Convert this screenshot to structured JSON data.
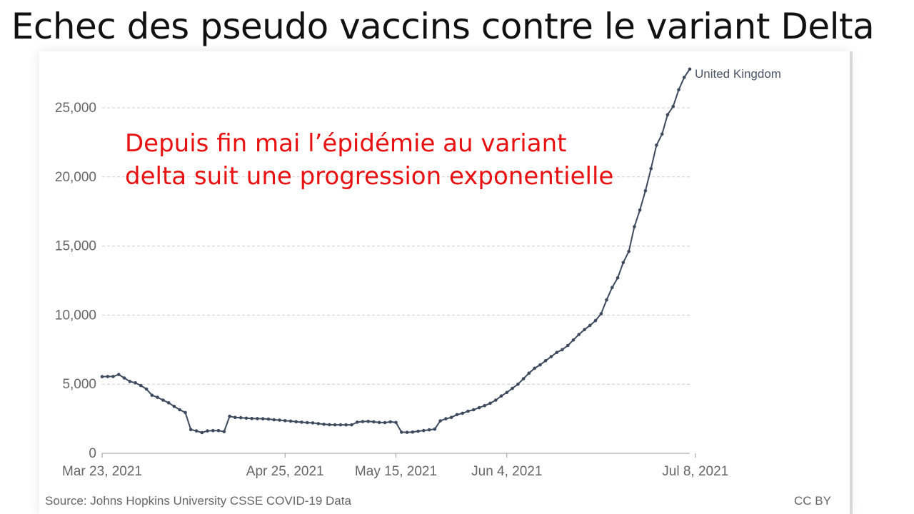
{
  "slide_title": "Echec des pseudo vaccins contre le variant Delta",
  "annotation": {
    "line1": "Depuis fin mai l’épidémie au variant",
    "line2": "delta suit une progression exponentielle"
  },
  "source": "Source: Johns Hopkins University CSSE COVID-19 Data",
  "license": "CC BY",
  "colors": {
    "series": "#3d4a5e",
    "annotation": "#e81010",
    "grid": "#cccccc",
    "axis_text": "#666666"
  },
  "chart_data": {
    "type": "line",
    "grid": true,
    "ylim": [
      0,
      28000
    ],
    "y_ticks": [
      {
        "value": 0,
        "label": "0"
      },
      {
        "value": 5000,
        "label": "5,000"
      },
      {
        "value": 10000,
        "label": "10,000"
      },
      {
        "value": 15000,
        "label": "15,000"
      },
      {
        "value": 20000,
        "label": "20,000"
      },
      {
        "value": 25000,
        "label": "25,000"
      }
    ],
    "x_ticks": [
      {
        "label": "Mar 23, 2021",
        "day": 0
      },
      {
        "label": "Apr 25, 2021",
        "day": 33
      },
      {
        "label": "May 15, 2021",
        "day": 53
      },
      {
        "label": "Jun 4, 2021",
        "day": 73
      },
      {
        "label": "Jul 8, 2021",
        "day": 107
      }
    ],
    "x_start": "2021-03-23",
    "x_end": "2021-07-08",
    "series": [
      {
        "name": "United Kingdom",
        "values": [
          5550,
          5560,
          5560,
          5700,
          5450,
          5200,
          5100,
          4900,
          4650,
          4200,
          4050,
          3850,
          3650,
          3400,
          3150,
          2950,
          1720,
          1620,
          1500,
          1620,
          1640,
          1640,
          1570,
          2680,
          2600,
          2580,
          2540,
          2520,
          2510,
          2500,
          2480,
          2430,
          2400,
          2360,
          2330,
          2290,
          2250,
          2220,
          2200,
          2150,
          2100,
          2070,
          2060,
          2060,
          2060,
          2060,
          2250,
          2300,
          2310,
          2280,
          2230,
          2220,
          2280,
          2230,
          1530,
          1520,
          1540,
          1600,
          1650,
          1700,
          1750,
          2350,
          2500,
          2600,
          2800,
          2900,
          3050,
          3150,
          3300,
          3450,
          3620,
          3850,
          4150,
          4400,
          4700,
          5000,
          5400,
          5800,
          6150,
          6400,
          6700,
          7000,
          7300,
          7500,
          7800,
          8200,
          8600,
          8950,
          9250,
          9600,
          10100,
          11100,
          12000,
          12700,
          13800,
          14600,
          16400,
          17600,
          19000,
          20600,
          22300,
          23100,
          24500,
          25100,
          26300,
          27200,
          27800
        ]
      }
    ]
  }
}
